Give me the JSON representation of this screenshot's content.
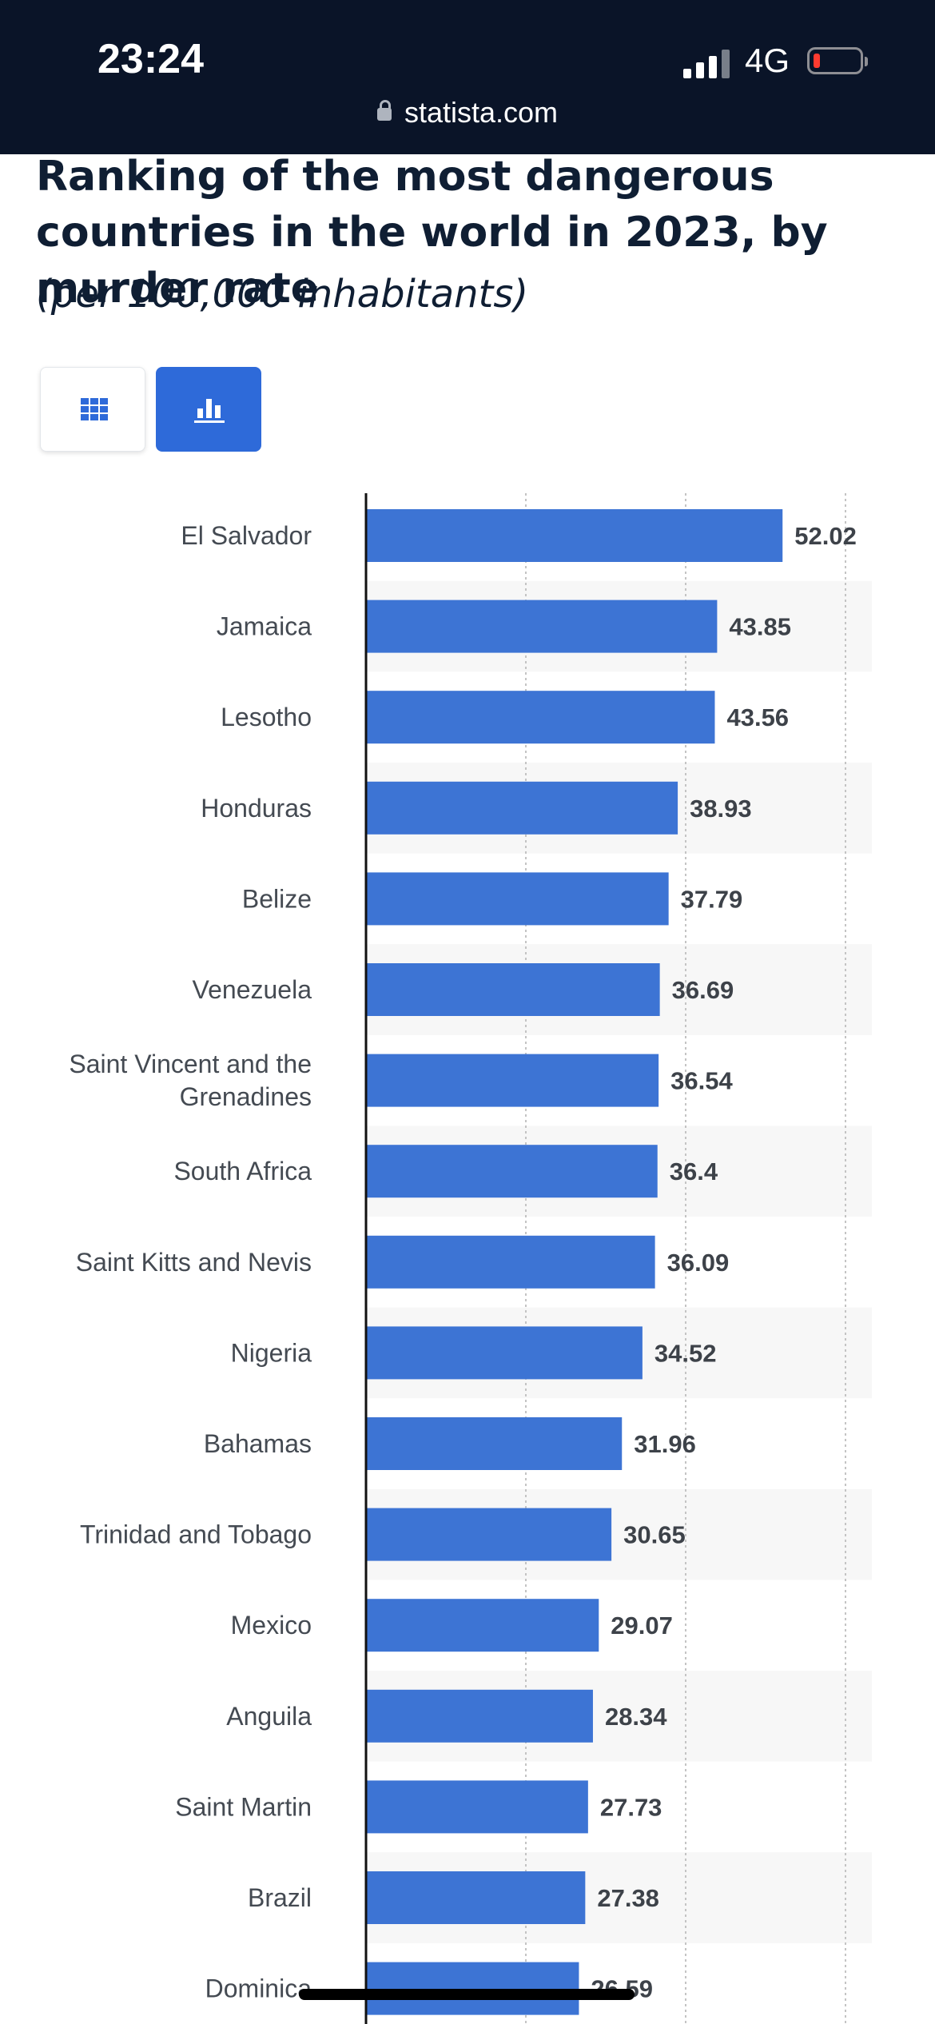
{
  "status_bar": {
    "time": "23:24",
    "network": "4G",
    "url": "statista.com"
  },
  "view_toggle": {
    "table_icon": "grid-icon",
    "chart_icon": "bar-chart-icon",
    "active": "chart"
  },
  "colors": {
    "bar": "#3d74d4",
    "stripe": "#f7f7f7",
    "accent": "#2e6ad9",
    "title": "#0f1e33"
  },
  "chart_data": {
    "type": "bar",
    "orientation": "horizontal",
    "title": "Ranking of the most dangerous countries in the world in 2023, by murder rate",
    "subtitle": "(per 100,000 inhabitants)",
    "xlim": [
      0,
      60
    ],
    "grid": true,
    "categories": [
      "El Salvador",
      "Jamaica",
      "Lesotho",
      "Honduras",
      "Belize",
      "Venezuela",
      "Saint Vincent and the Grenadines",
      "South Africa",
      "Saint Kitts and Nevis",
      "Nigeria",
      "Bahamas",
      "Trinidad and Tobago",
      "Mexico",
      "Anguila",
      "Saint Martin",
      "Brazil",
      "Dominica"
    ],
    "category_lines": [
      [
        "El Salvador"
      ],
      [
        "Jamaica"
      ],
      [
        "Lesotho"
      ],
      [
        "Honduras"
      ],
      [
        "Belize"
      ],
      [
        "Venezuela"
      ],
      [
        "Saint Vincent and the",
        "Grenadines"
      ],
      [
        "South Africa"
      ],
      [
        "Saint Kitts and Nevis"
      ],
      [
        "Nigeria"
      ],
      [
        "Bahamas"
      ],
      [
        "Trinidad and Tobago"
      ],
      [
        "Mexico"
      ],
      [
        "Anguila"
      ],
      [
        "Saint Martin"
      ],
      [
        "Brazil"
      ],
      [
        "Dominica"
      ]
    ],
    "values": [
      52.02,
      43.85,
      43.56,
      38.93,
      37.79,
      36.69,
      36.54,
      36.4,
      36.09,
      34.52,
      31.96,
      30.65,
      29.07,
      28.34,
      27.73,
      27.38,
      26.59
    ],
    "value_labels": [
      "52.02",
      "43.85",
      "43.56",
      "38.93",
      "37.79",
      "36.69",
      "36.54",
      "36.4",
      "36.09",
      "34.52",
      "31.96",
      "30.65",
      "29.07",
      "28.34",
      "27.73",
      "27.38",
      "26.59"
    ]
  }
}
